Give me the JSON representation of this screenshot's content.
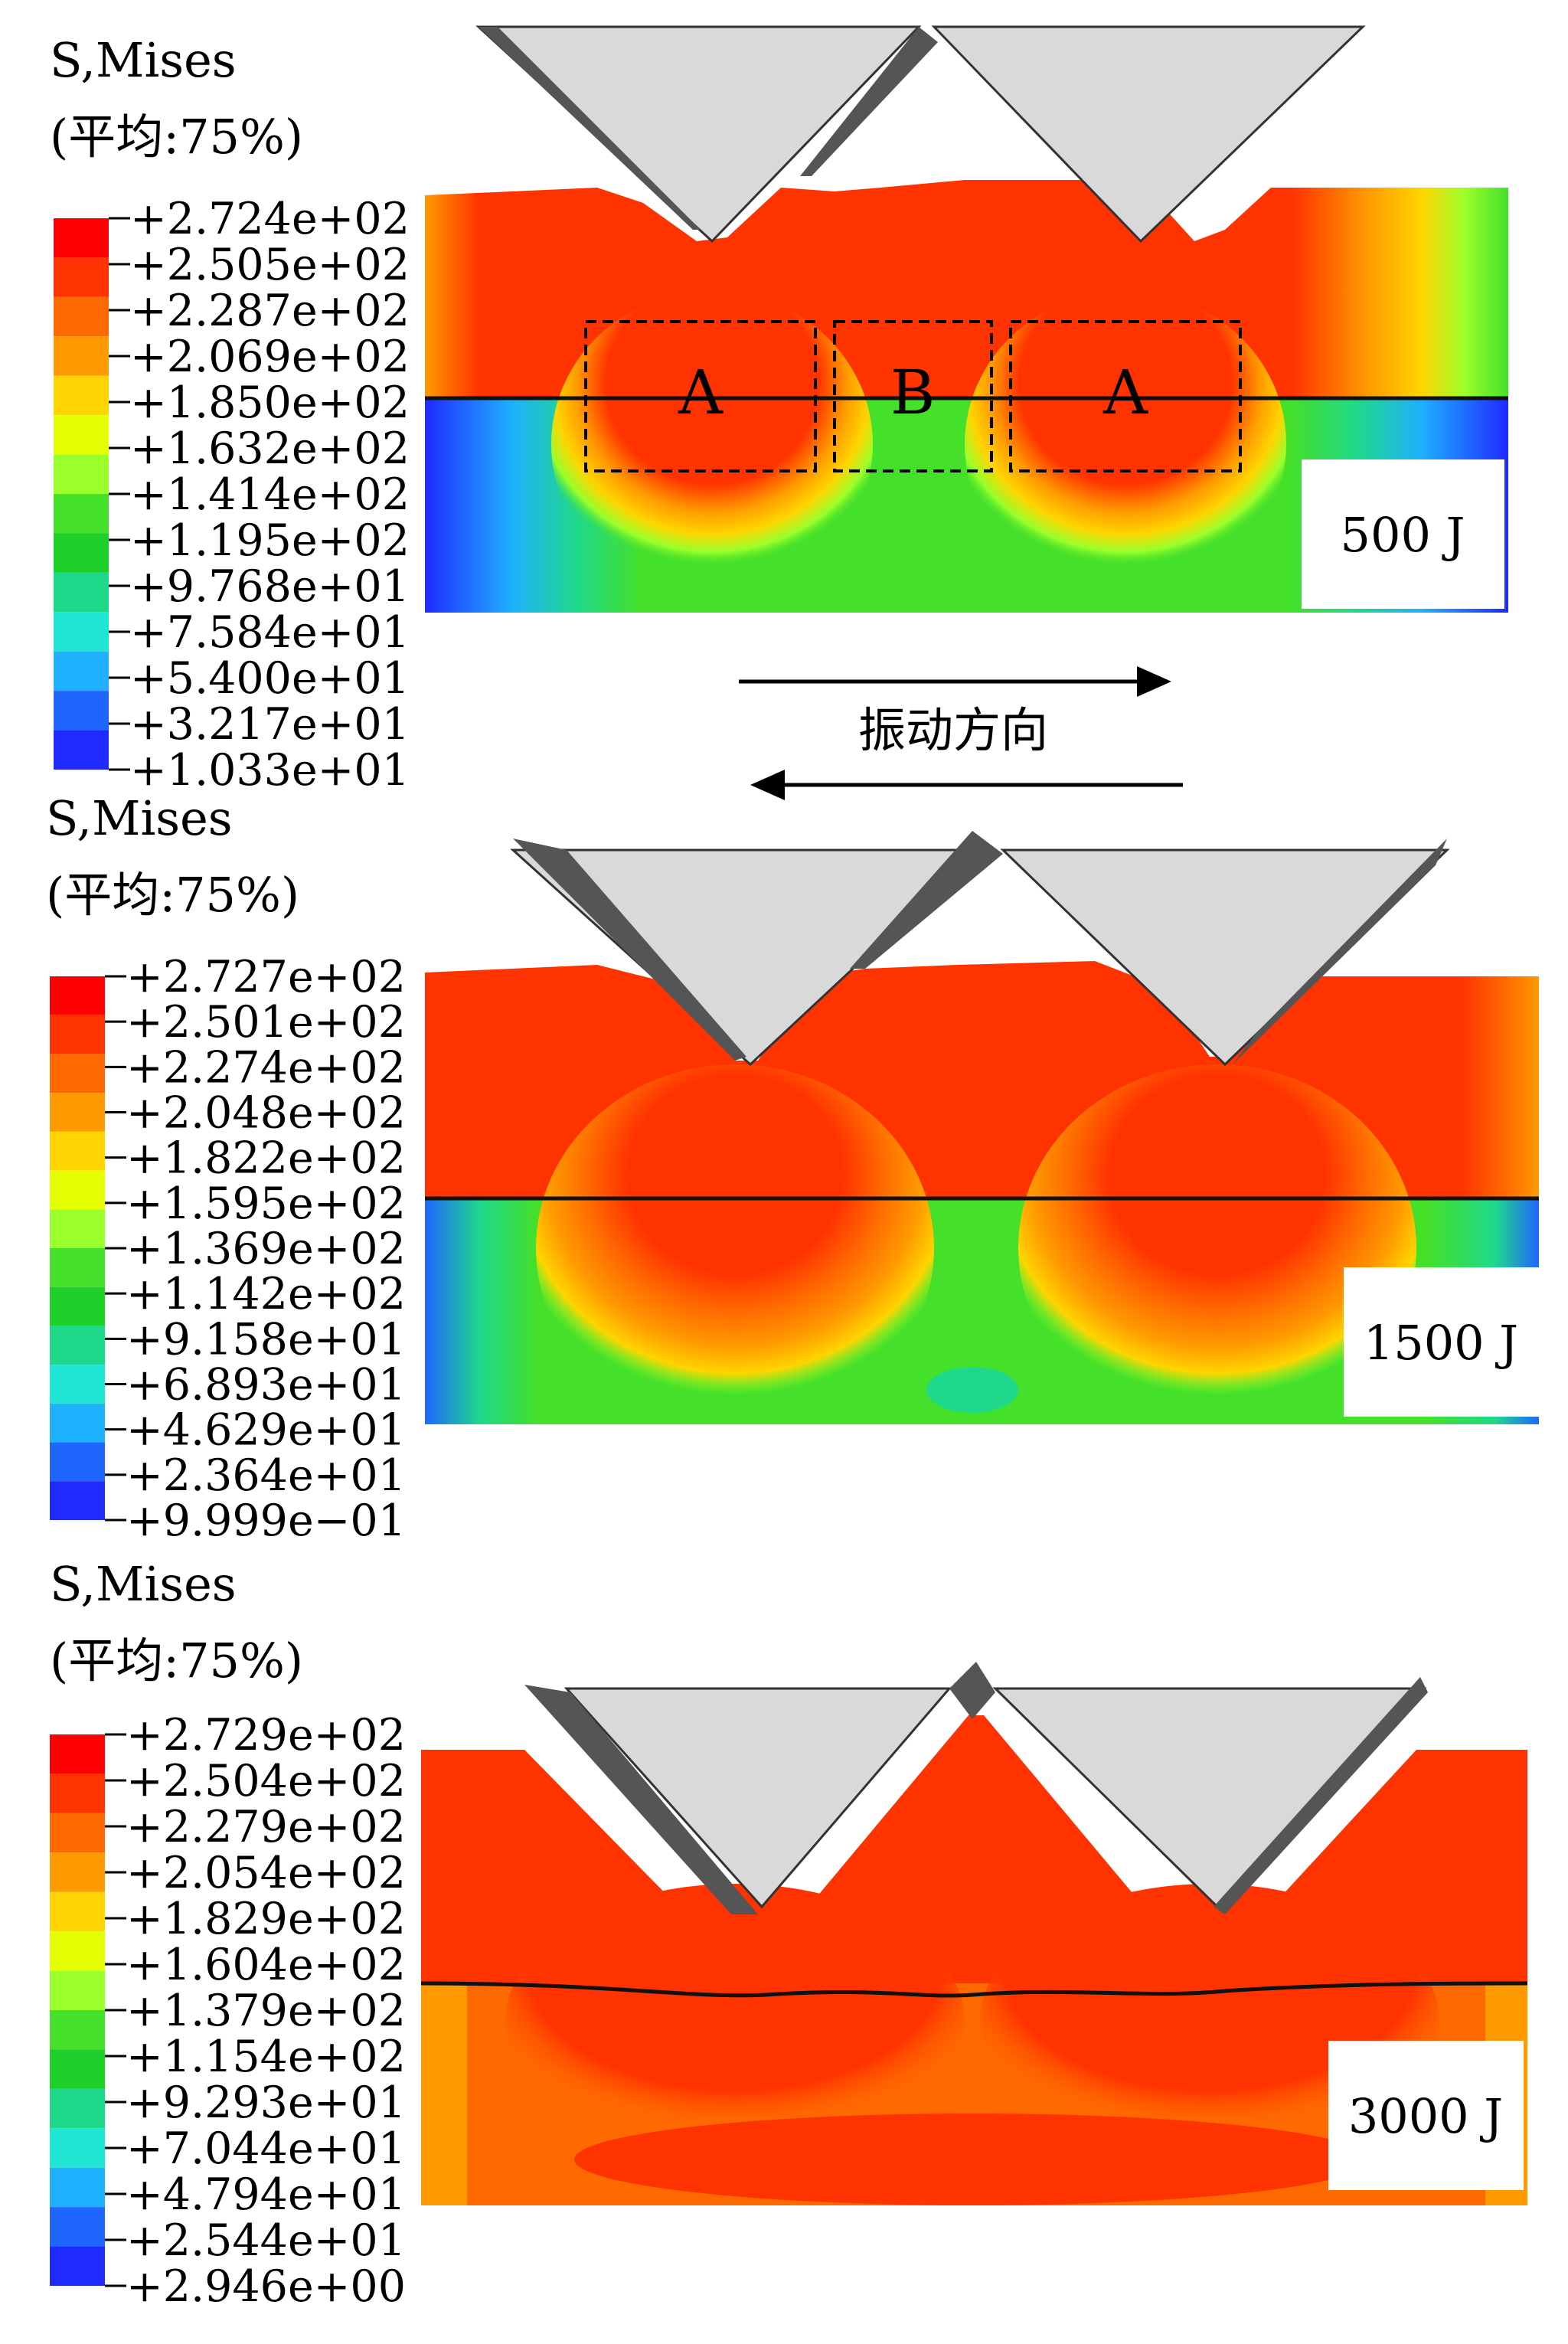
{
  "legend_colors": [
    "#ff0000",
    "#ff3300",
    "#ff6a00",
    "#ff9a00",
    "#ffd400",
    "#e6ff00",
    "#9aff2a",
    "#44e02a",
    "#1fcf2a",
    "#1fd98a",
    "#1fe6d4",
    "#1fb0ff",
    "#1f66ff",
    "#1f2aff"
  ],
  "direction_label": "振动方向",
  "panels": [
    {
      "title": "S,Mises",
      "subtitle": "(平均:75%)",
      "ticks": [
        "+2.724e+02",
        "+2.505e+02",
        "+2.287e+02",
        "+2.069e+02",
        "+1.850e+02",
        "+1.632e+02",
        "+1.414e+02",
        "+1.195e+02",
        "+9.768e+01",
        "+7.584e+01",
        "+5.400e+01",
        "+3.217e+01",
        "+1.033e+01"
      ],
      "energy": "500 J",
      "region_labels": [
        "A",
        "B",
        "A"
      ]
    },
    {
      "title": "S,Mises",
      "subtitle": "(平均:75%)",
      "ticks": [
        "+2.727e+02",
        "+2.501e+02",
        "+2.274e+02",
        "+2.048e+02",
        "+1.822e+02",
        "+1.595e+02",
        "+1.369e+02",
        "+1.142e+02",
        "+9.158e+01",
        "+6.893e+01",
        "+4.629e+01",
        "+2.364e+01",
        "+9.999e−01"
      ],
      "energy": "1500 J"
    },
    {
      "title": "S,Mises",
      "subtitle": "(平均:75%)",
      "ticks": [
        "+2.729e+02",
        "+2.504e+02",
        "+2.279e+02",
        "+2.054e+02",
        "+1.829e+02",
        "+1.604e+02",
        "+1.379e+02",
        "+1.154e+02",
        "+9.293e+01",
        "+7.044e+01",
        "+4.794e+01",
        "+2.544e+01",
        "+2.946e+00"
      ],
      "energy": "3000 J"
    }
  ]
}
